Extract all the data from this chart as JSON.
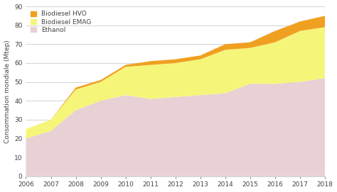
{
  "years": [
    2006,
    2007,
    2008,
    2009,
    2010,
    2011,
    2012,
    2013,
    2014,
    2015,
    2016,
    2017,
    2018
  ],
  "ethanol": [
    20,
    24,
    35,
    40,
    43,
    41,
    42,
    43,
    44,
    49,
    49,
    50,
    52
  ],
  "biodiesel_emag": [
    5,
    6,
    11,
    10,
    15,
    18,
    18,
    19,
    23,
    19,
    22,
    27,
    27
  ],
  "biodiesel_hvo": [
    0,
    0,
    1,
    1,
    1,
    2,
    2,
    2,
    3,
    3,
    6,
    5,
    6
  ],
  "color_ethanol": "#e8d0d5",
  "color_emag": "#f5f57a",
  "color_hvo": "#f0a020",
  "ylabel": "Consommation mondiale (Mtep)",
  "ylim": [
    0,
    90
  ],
  "yticks": [
    0,
    10,
    20,
    30,
    40,
    50,
    60,
    70,
    80,
    90
  ],
  "legend_labels": [
    "Biodiesel HVO",
    "Biodiesel EMAG",
    "Ethanol"
  ],
  "bg_color": "#ffffff",
  "grid_color": "#cccccc",
  "text_color": "#444444"
}
